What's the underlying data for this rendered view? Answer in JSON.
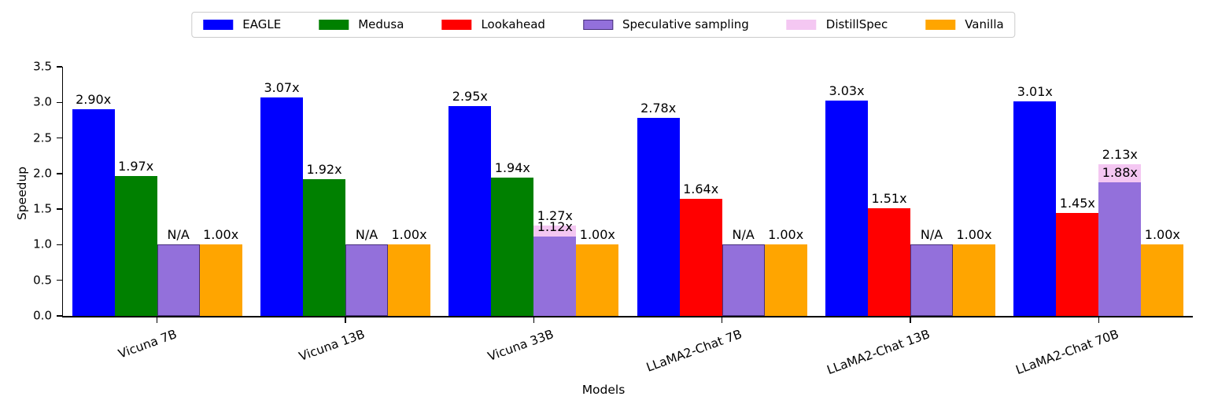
{
  "chart_data": {
    "type": "bar",
    "title": "",
    "xlabel": "Models",
    "ylabel": "Speedup",
    "ylim": [
      0,
      3.5
    ],
    "yticks": [
      "0.0",
      "0.5",
      "1.0",
      "1.5",
      "2.0",
      "2.5",
      "3.0",
      "3.5"
    ],
    "grid": false,
    "legend": {
      "position": "top-center",
      "entries": [
        {
          "label": "EAGLE",
          "color": "#0000ff",
          "hatch": false
        },
        {
          "label": "Medusa",
          "color": "#008000",
          "hatch": false
        },
        {
          "label": "Lookahead",
          "color": "#ff0000",
          "hatch": false
        },
        {
          "label": "Speculative sampling",
          "color": "#9370db",
          "hatch": true
        },
        {
          "label": "DistillSpec",
          "color": "#f4c7f2",
          "hatch": false
        },
        {
          "label": "Vanilla",
          "color": "#ffa500",
          "hatch": false
        }
      ]
    },
    "categories": [
      "Vicuna 7B",
      "Vicuna 13B",
      "Vicuna 33B",
      "LLaMA2-Chat 7B",
      "LLaMA2-Chat 13B",
      "LLaMA2-Chat 70B"
    ],
    "slots_per_group": 4,
    "groups": [
      {
        "label": "Vicuna 7B",
        "bars": [
          {
            "series": "EAGLE",
            "slot": 0,
            "value": 2.9,
            "label": "2.90x",
            "hatch": false
          },
          {
            "series": "Medusa",
            "slot": 1,
            "value": 1.97,
            "label": "1.97x",
            "hatch": false
          },
          {
            "series": "Speculative sampling",
            "slot": 2,
            "value": 1.0,
            "label": "N/A",
            "hatch": true
          },
          {
            "series": "Vanilla",
            "slot": 3,
            "value": 1.0,
            "label": "1.00x",
            "hatch": false
          }
        ]
      },
      {
        "label": "Vicuna 13B",
        "bars": [
          {
            "series": "EAGLE",
            "slot": 0,
            "value": 3.07,
            "label": "3.07x",
            "hatch": false
          },
          {
            "series": "Medusa",
            "slot": 1,
            "value": 1.92,
            "label": "1.92x",
            "hatch": false
          },
          {
            "series": "Speculative sampling",
            "slot": 2,
            "value": 1.0,
            "label": "N/A",
            "hatch": true
          },
          {
            "series": "Vanilla",
            "slot": 3,
            "value": 1.0,
            "label": "1.00x",
            "hatch": false
          }
        ]
      },
      {
        "label": "Vicuna 33B",
        "bars": [
          {
            "series": "EAGLE",
            "slot": 0,
            "value": 2.95,
            "label": "2.95x",
            "hatch": false
          },
          {
            "series": "Medusa",
            "slot": 1,
            "value": 1.94,
            "label": "1.94x",
            "hatch": false
          },
          {
            "series": "DistillSpec",
            "slot": 2,
            "value": 1.27,
            "label": "1.27x",
            "hatch": false
          },
          {
            "series": "Speculative sampling",
            "slot": 2,
            "value": 1.12,
            "label": "1.12x",
            "hatch": false
          },
          {
            "series": "Vanilla",
            "slot": 3,
            "value": 1.0,
            "label": "1.00x",
            "hatch": false
          }
        ]
      },
      {
        "label": "LLaMA2-Chat 7B",
        "bars": [
          {
            "series": "EAGLE",
            "slot": 0,
            "value": 2.78,
            "label": "2.78x",
            "hatch": false
          },
          {
            "series": "Lookahead",
            "slot": 1,
            "value": 1.64,
            "label": "1.64x",
            "hatch": false
          },
          {
            "series": "Speculative sampling",
            "slot": 2,
            "value": 1.0,
            "label": "N/A",
            "hatch": true
          },
          {
            "series": "Vanilla",
            "slot": 3,
            "value": 1.0,
            "label": "1.00x",
            "hatch": false
          }
        ]
      },
      {
        "label": "LLaMA2-Chat 13B",
        "bars": [
          {
            "series": "EAGLE",
            "slot": 0,
            "value": 3.03,
            "label": "3.03x",
            "hatch": false
          },
          {
            "series": "Lookahead",
            "slot": 1,
            "value": 1.51,
            "label": "1.51x",
            "hatch": false
          },
          {
            "series": "Speculative sampling",
            "slot": 2,
            "value": 1.0,
            "label": "N/A",
            "hatch": true
          },
          {
            "series": "Vanilla",
            "slot": 3,
            "value": 1.0,
            "label": "1.00x",
            "hatch": false
          }
        ]
      },
      {
        "label": "LLaMA2-Chat 70B",
        "bars": [
          {
            "series": "EAGLE",
            "slot": 0,
            "value": 3.01,
            "label": "3.01x",
            "hatch": false
          },
          {
            "series": "Lookahead",
            "slot": 1,
            "value": 1.45,
            "label": "1.45x",
            "hatch": false
          },
          {
            "series": "DistillSpec",
            "slot": 2,
            "value": 2.13,
            "label": "2.13x",
            "hatch": false
          },
          {
            "series": "Speculative sampling",
            "slot": 2,
            "value": 1.88,
            "label": "1.88x",
            "hatch": false
          },
          {
            "series": "Vanilla",
            "slot": 3,
            "value": 1.0,
            "label": "1.00x",
            "hatch": false
          }
        ]
      }
    ]
  }
}
